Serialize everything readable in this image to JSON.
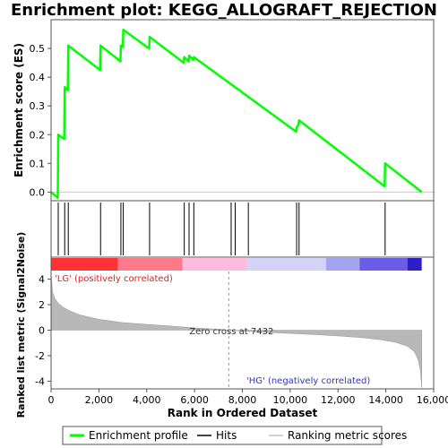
{
  "chart_data": {
    "type": "line",
    "title": "Enrichment plot: KEGG_ALLOGRAFT_REJECTION",
    "xlabel": "Rank in Ordered Dataset",
    "ylabel_top": "Enrichment score (ES)",
    "ylabel_bottom": "Ranked list metric (Signal2Noise)",
    "xlim": [
      0,
      16000
    ],
    "x_ticks": [
      0,
      2000,
      4000,
      6000,
      8000,
      10000,
      12000,
      14000,
      16000
    ],
    "x_tick_labels": [
      "0",
      "2,000",
      "4,000",
      "6,000",
      "8,000",
      "10,000",
      "12,000",
      "14,000",
      "16,000"
    ],
    "es_ylim": [
      -0.03,
      0.6
    ],
    "es_ticks": [
      0.0,
      0.1,
      0.2,
      0.3,
      0.4,
      0.5
    ],
    "es_tick_labels": [
      "0.0",
      "0.1",
      "0.2",
      "0.3",
      "0.4",
      "0.5"
    ],
    "metric_ylim": [
      -4.6,
      4.6
    ],
    "metric_ticks": [
      4,
      2,
      0,
      -2,
      -4
    ],
    "metric_tick_labels": [
      "4",
      "2",
      "0",
      "-2",
      "-4"
    ],
    "series": [
      {
        "name": "Enrichment profile",
        "color": "#00ff00",
        "x": [
          0,
          280,
          300,
          550,
          570,
          700,
          720,
          2050,
          2070,
          2900,
          2920,
          3000,
          3020,
          4100,
          4120,
          5550,
          5570,
          5750,
          5770,
          5950,
          5970,
          10250,
          10270,
          10350,
          10370,
          13950,
          13970,
          15500
        ],
        "y": [
          0.0,
          -0.02,
          0.2,
          0.185,
          0.365,
          0.355,
          0.51,
          0.425,
          0.51,
          0.455,
          0.51,
          0.505,
          0.565,
          0.5,
          0.54,
          0.45,
          0.47,
          0.455,
          0.475,
          0.46,
          0.47,
          0.21,
          0.225,
          0.235,
          0.25,
          0.02,
          0.1,
          0.0
        ]
      }
    ],
    "hits": [
      300,
      570,
      720,
      2070,
      2920,
      3020,
      4120,
      5570,
      5770,
      5970,
      7530,
      7700,
      8250,
      10270,
      10370,
      13970
    ],
    "metric_profile": {
      "x": [
        0,
        60,
        150,
        300,
        500,
        800,
        1200,
        2000,
        3000,
        4000,
        5000,
        6000,
        7000,
        7432,
        8000,
        9000,
        10000,
        11000,
        12000,
        13000,
        13800,
        14400,
        14900,
        15200,
        15350,
        15450,
        15500
      ],
      "y": [
        4.4,
        3.0,
        2.5,
        2.1,
        1.8,
        1.5,
        1.2,
        0.85,
        0.6,
        0.45,
        0.32,
        0.18,
        0.06,
        0.0,
        -0.06,
        -0.16,
        -0.25,
        -0.34,
        -0.45,
        -0.58,
        -0.75,
        -0.95,
        -1.25,
        -1.7,
        -2.3,
        -3.2,
        -4.5
      ]
    },
    "zero_cross": 7432,
    "zero_cross_label": "Zero cross at 7432",
    "pos_label": "'LG' (positively correlated)",
    "neg_label": "'HG' (negatively correlated)",
    "colorbar_segments": [
      {
        "x0": 0,
        "x1": 2800,
        "color": "#ff3333"
      },
      {
        "x0": 2800,
        "x1": 5500,
        "color": "#ff7b89"
      },
      {
        "x0": 5500,
        "x1": 8200,
        "color": "#ffbbdd"
      },
      {
        "x0": 8200,
        "x1": 11500,
        "color": "#d3d3f8"
      },
      {
        "x0": 11500,
        "x1": 12900,
        "color": "#a3a3f0"
      },
      {
        "x0": 12900,
        "x1": 14900,
        "color": "#6a5ce6"
      },
      {
        "x0": 14900,
        "x1": 15500,
        "color": "#2d1ec6"
      }
    ],
    "legend": [
      {
        "label": "Enrichment profile",
        "kind": "line",
        "color": "#00ff00"
      },
      {
        "label": "Hits",
        "kind": "line",
        "color": "#000000"
      },
      {
        "label": "Ranking metric scores",
        "kind": "line",
        "color": "#c0c0c0"
      }
    ]
  }
}
